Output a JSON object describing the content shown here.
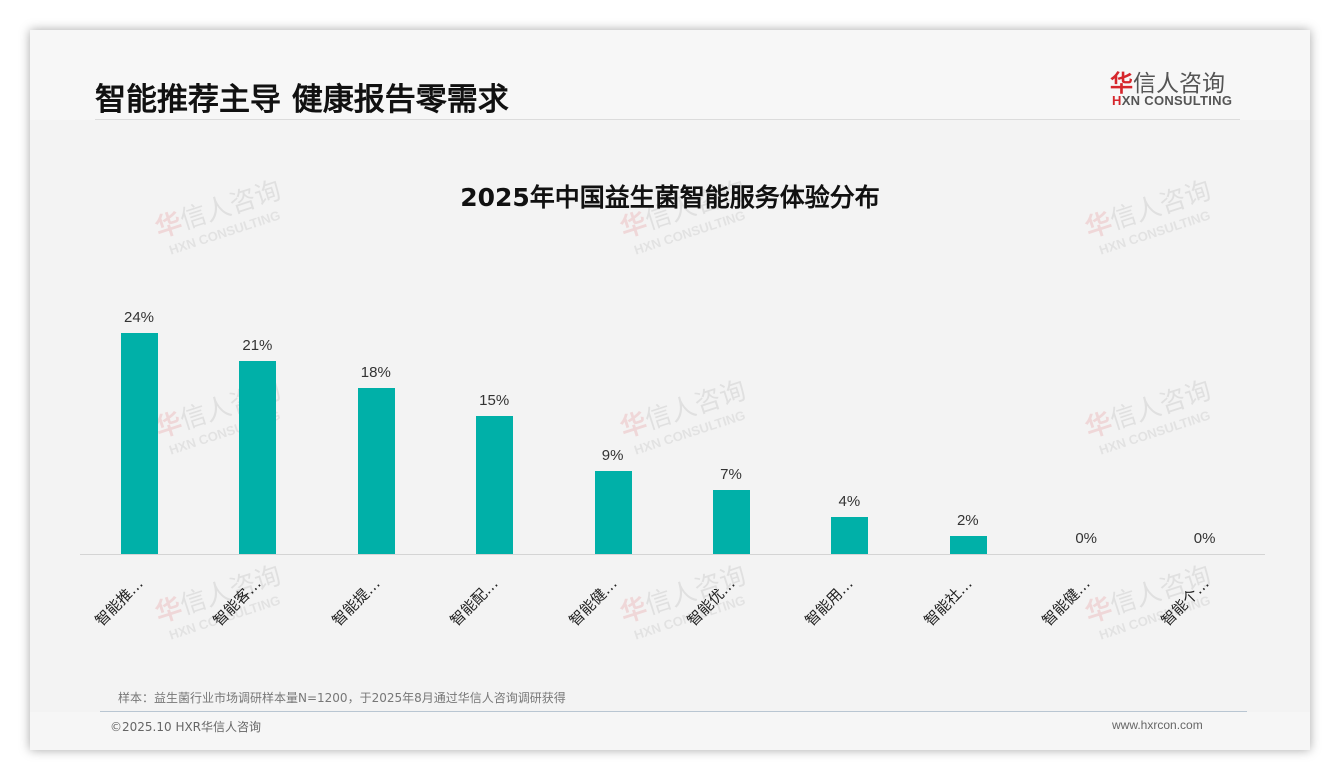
{
  "header": {
    "title": "智能推荐主导 健康报告零需求",
    "logo": {
      "cn_first": "华",
      "cn_rest": "信人咨询",
      "en_first": "H",
      "en_rest": "XN CONSULTING"
    }
  },
  "watermark": {
    "cn_first": "华",
    "cn_rest": "信人咨询",
    "en": "HXN CONSULTING"
  },
  "chart_data": {
    "type": "bar",
    "title": "2025年中国益生菌智能服务体验分布",
    "categories": [
      "智能推…",
      "智能客…",
      "智能提…",
      "智能配…",
      "智能健…",
      "智能优…",
      "智能用…",
      "智能社…",
      "智能健…",
      "智能个…"
    ],
    "values": [
      24,
      21,
      18,
      15,
      9,
      7,
      4,
      2,
      0,
      0
    ],
    "value_labels": [
      "24%",
      "21%",
      "18%",
      "15%",
      "9%",
      "7%",
      "4%",
      "2%",
      "0%",
      "0%"
    ],
    "xlabel": "",
    "ylabel": "",
    "ylim": [
      0,
      24
    ],
    "grid": false,
    "legend": "none",
    "bar_color": "#00b0a8"
  },
  "footer": {
    "sample_note": "样本：益生菌行业市场调研样本量N=1200，于2025年8月通过华信人咨询调研获得",
    "copyright": "©2025.10 HXR华信人咨询",
    "website": "www.hxrcon.com"
  }
}
